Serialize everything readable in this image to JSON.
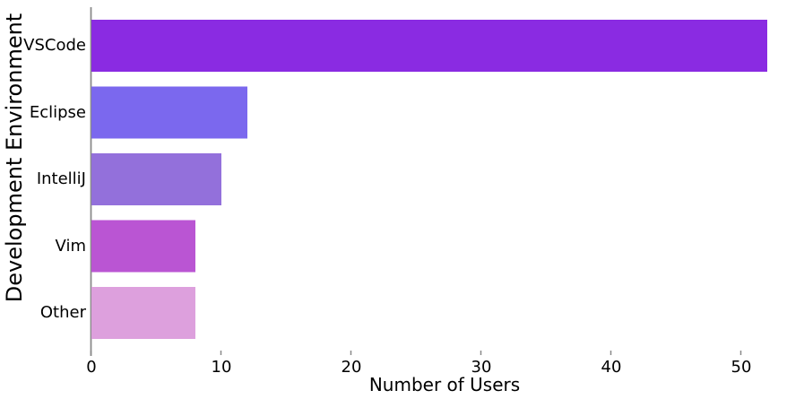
{
  "chart_data": {
    "type": "bar",
    "orientation": "horizontal",
    "title": "",
    "xlabel": "Number of Users",
    "ylabel": "Development Environment",
    "categories": [
      "VSCode",
      "Eclipse",
      "IntelliJ",
      "Vim",
      "Other"
    ],
    "values": [
      52,
      12,
      10,
      8,
      8
    ],
    "bar_colors": [
      "#8A2BE2",
      "#7B68EE",
      "#9370DB",
      "#BA55D3",
      "#DDA0DD"
    ],
    "x_ticks": [
      "0",
      "10",
      "20",
      "30",
      "40",
      "50"
    ],
    "x_tick_values": [
      0,
      10,
      20,
      30,
      40,
      50
    ],
    "xlim": [
      0,
      53.7
    ],
    "grid": false,
    "legend": null,
    "spine_color": "#8a8a8a",
    "text_color": "#000000",
    "background_color": "#ffffff"
  }
}
